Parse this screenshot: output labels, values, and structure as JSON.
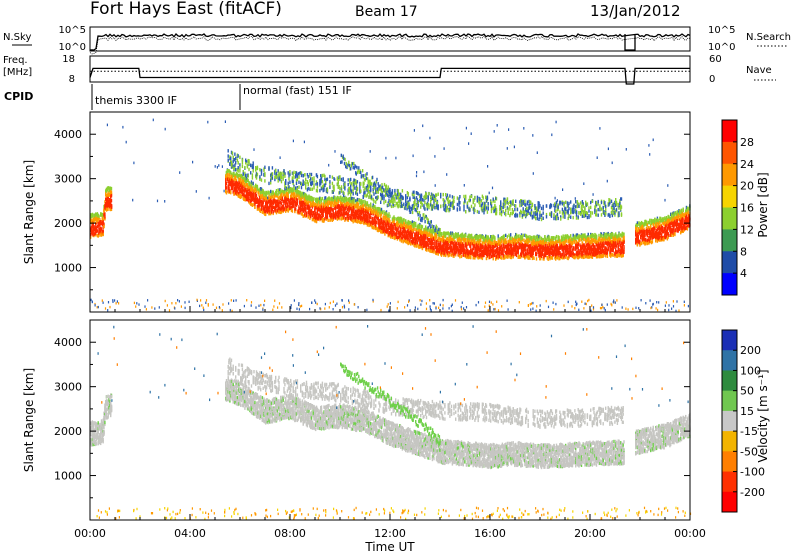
{
  "header": {
    "title": "Fort Hays East (fitACF)",
    "beam": "Beam 17",
    "date": "13/Jan/2012"
  },
  "noise_panel": {
    "left_label": "N.Sky",
    "left_ticks": [
      "10^5",
      "10^0"
    ],
    "right_ticks": [
      "10^5",
      "10^0"
    ],
    "right_label": "N.Search"
  },
  "freq_panel": {
    "left_label_line1": "Freq.",
    "left_label_line2": "[MHz]",
    "left_ticks": [
      "18",
      "8"
    ],
    "right_ticks": [
      "60",
      "0"
    ],
    "right_label": "Nave",
    "freq_mhz": [
      [
        0.0,
        10.5
      ],
      [
        0.12,
        14
      ],
      [
        1.95,
        14
      ],
      [
        2.0,
        10.5
      ],
      [
        14.0,
        10.5
      ],
      [
        14.05,
        14
      ],
      [
        21.4,
        14
      ],
      [
        21.45,
        8
      ],
      [
        21.75,
        8
      ],
      [
        21.8,
        14
      ],
      [
        24.0,
        14
      ]
    ],
    "nave": [
      [
        0.0,
        25
      ],
      [
        24.0,
        25
      ]
    ]
  },
  "cpid": {
    "label": "CPID",
    "segments": [
      {
        "start_hour": 0.0,
        "text": "themis 3300 IF"
      },
      {
        "start_hour": 6.0,
        "text": "normal (fast) 151 IF"
      }
    ]
  },
  "axes": {
    "x_ticks": [
      "00:00",
      "04:00",
      "08:00",
      "12:00",
      "16:00",
      "20:00",
      "00:00"
    ],
    "x_label": "Time UT",
    "y_ticks": [
      "1000",
      "2000",
      "3000",
      "4000"
    ],
    "y_label": "Slant Range [km]"
  },
  "power_bar": {
    "label": "Power [dB]",
    "ticks": [
      "28",
      "24",
      "20",
      "16",
      "12",
      "8",
      "4"
    ],
    "colors": [
      "#ff0000",
      "#ff5500",
      "#ff9900",
      "#f6d400",
      "#8ccf2f",
      "#3c9a52",
      "#1f4ca8",
      "#0000ff"
    ]
  },
  "velocity_bar": {
    "label": "Velocity [m s⁻¹]",
    "ticks": [
      "200",
      "100",
      "50",
      "15",
      "-15",
      "-50",
      "-100",
      "-200"
    ],
    "colors": [
      "#1b2fb5",
      "#2f73a6",
      "#2e8b3e",
      "#70c750",
      "#c8c8c8",
      "#f3b400",
      "#ff7f00",
      "#ff3000",
      "#ff0000"
    ]
  },
  "chart_data": {
    "type": "heatmap",
    "x_range_hours": [
      0,
      24
    ],
    "y_range_km": [
      0,
      4500
    ],
    "colors": {
      "power_strong": "#ff2a00",
      "power_mid": "#ff9a00",
      "power_weak": "#8ccf2f",
      "power_low": "#2b5db4",
      "velocity_grey": "#c6c6c2",
      "velocity_green": "#6fd04a"
    },
    "main_band_center_km": [
      [
        0.0,
        1900
      ],
      [
        0.5,
        1950
      ],
      [
        0.6,
        2500
      ],
      [
        5.5,
        2900
      ],
      [
        6.0,
        2800
      ],
      [
        7.0,
        2400
      ],
      [
        8.0,
        2500
      ],
      [
        9.0,
        2250
      ],
      [
        10.0,
        2300
      ],
      [
        11.0,
        2200
      ],
      [
        12.0,
        1900
      ],
      [
        13.0,
        1700
      ],
      [
        14.0,
        1500
      ],
      [
        15.0,
        1450
      ],
      [
        16.0,
        1400
      ],
      [
        17.0,
        1450
      ],
      [
        18.0,
        1400
      ],
      [
        19.0,
        1420
      ],
      [
        20.0,
        1450
      ],
      [
        21.3,
        1480
      ],
      [
        21.8,
        1700
      ],
      [
        23.0,
        1850
      ],
      [
        24.0,
        2100
      ]
    ],
    "upper_branch_center_km": [
      [
        5.5,
        3500
      ],
      [
        6.5,
        3200
      ],
      [
        8.0,
        3000
      ],
      [
        10.0,
        2900
      ],
      [
        12.0,
        2600
      ],
      [
        14.0,
        2500
      ],
      [
        16.0,
        2450
      ],
      [
        18.0,
        2300
      ],
      [
        20.0,
        2350
      ],
      [
        21.3,
        2400
      ]
    ],
    "diagonal_streak_km": [
      [
        10.0,
        3500
      ],
      [
        11.5,
        2900
      ],
      [
        13.0,
        2300
      ],
      [
        14.0,
        1800
      ]
    ]
  }
}
